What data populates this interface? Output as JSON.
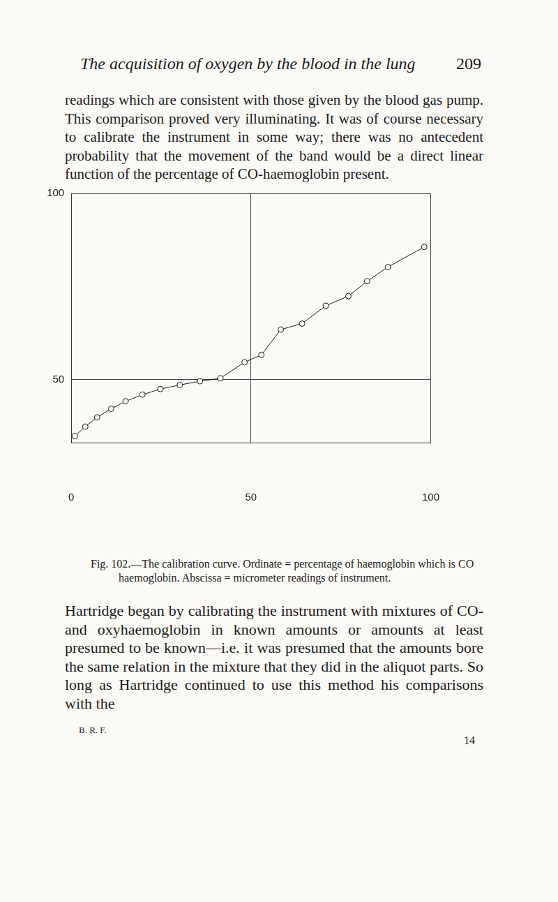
{
  "header": {
    "title": "The acquisition of oxygen by the blood in the lung",
    "page": "209"
  },
  "paragraphs": [
    "readings which are consistent with those given by the blood gas pump. This comparison proved very illuminating. It was of course necessary to calibrate the instrument in some way; there was no antecedent probability that the movement of the band would be a direct linear function of the percentage of CO-haemoglobin present."
  ],
  "chart_data": {
    "type": "scatter",
    "series": [
      {
        "color": "#1a1a1a",
        "marker": "circle",
        "line_style": "solid",
        "x": [
          1.0,
          3.9,
          7.2,
          11.1,
          15.1,
          19.8,
          24.8,
          30.2,
          35.8,
          41.5,
          48.2,
          52.9,
          58.3,
          64.2,
          70.8,
          77.1,
          82.3,
          88.1,
          98.2
        ],
        "values": [
          34.8,
          37.3,
          39.8,
          42.1,
          44.1,
          45.9,
          47.4,
          48.5,
          49.5,
          50.3,
          54.6,
          56.6,
          63.4,
          65.0,
          69.8,
          72.4,
          76.4,
          80.2,
          85.6
        ]
      }
    ],
    "xlim": [
      0,
      100
    ],
    "xticks": [
      0,
      50,
      100
    ],
    "ylim": [
      33,
      100
    ],
    "yticks": [
      50,
      100
    ],
    "grid": true
  },
  "caption": "Fig. 102.—The calibration curve. Ordinate = percentage of haemoglobin which is CO haemoglobin. Abscissa = micrometer readings of instrument.",
  "paragraphs_after": [
    "Hartridge began by calibrating the instrument with mixtures of CO- and oxyhaemoglobin in known amounts or amounts at least presumed to be known—i.e. it was presumed that the amounts bore the same relation in the mixture that they did in the aliquot parts. So long as Hartridge continued to use this method his comparisons with the"
  ],
  "footer": {
    "signature": "B. R. F.",
    "sheet": "14"
  }
}
